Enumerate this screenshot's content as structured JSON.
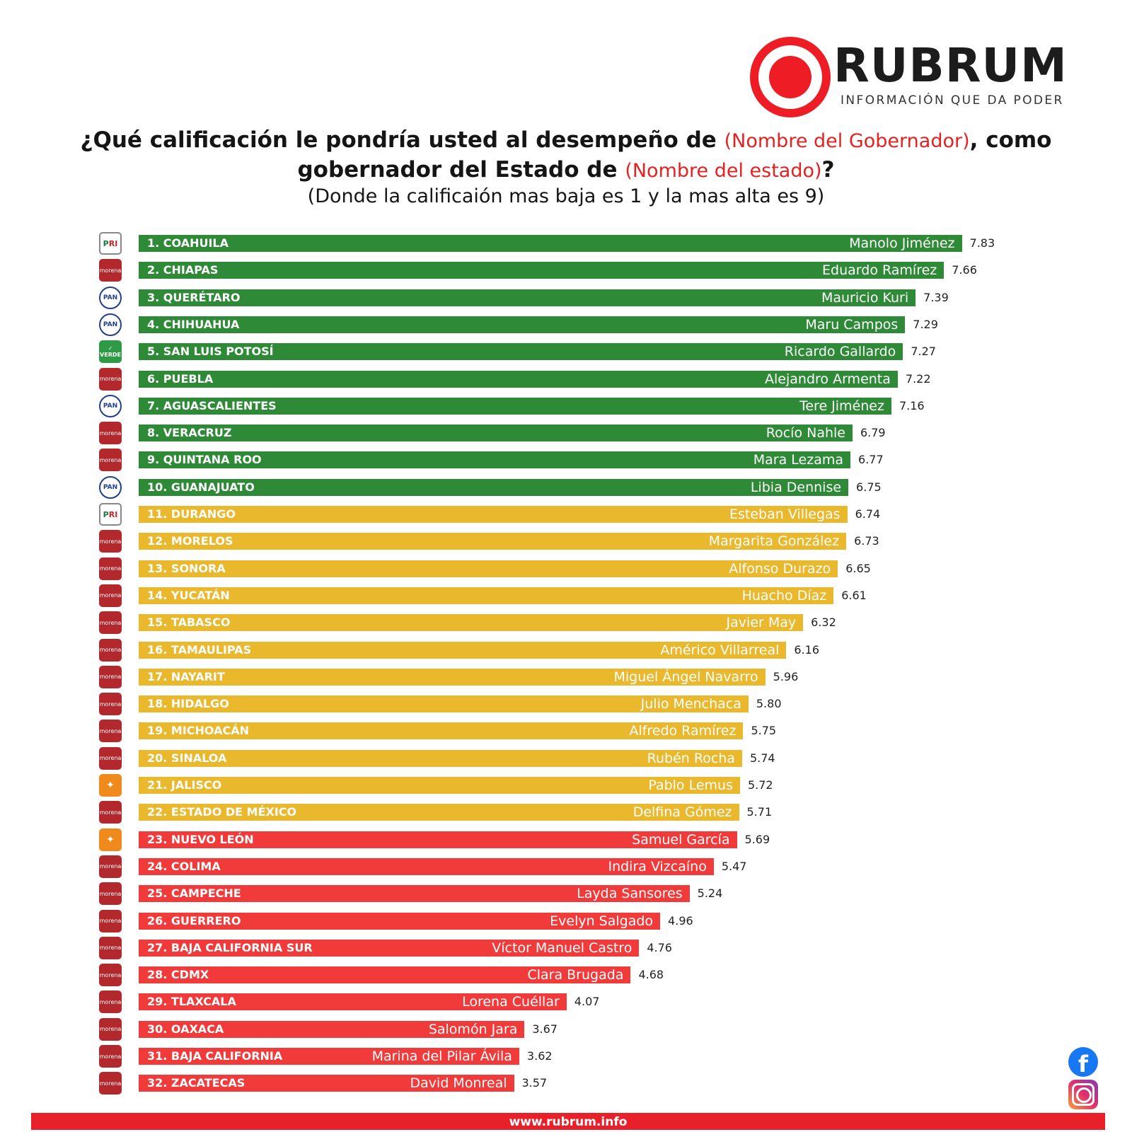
{
  "brand": {
    "name": "RUBRUM",
    "tagline": "INFORMACIÓN QUE DA PODER",
    "color": "#ee1c25"
  },
  "title": {
    "part1": "¿Qué calificación le pondría usted al desempeño de ",
    "highlight1": "(Nombre del Gobernador)",
    "part2": ", como gobernador del Estado de ",
    "highlight2": "(Nombre del estado)",
    "part3": "?",
    "subtitle": "(Donde la calificaión mas baja es 1 y la mas alta es 9)"
  },
  "colors": {
    "green": "#2f8a37",
    "yellow": "#e9b82d",
    "red": "#f13b3b"
  },
  "chart_data": {
    "type": "bar",
    "orientation": "horizontal",
    "xlim": [
      0,
      9
    ],
    "rows": [
      {
        "label": "1. COAHUILA",
        "governor": "Manolo Jiménez",
        "value": 7.83,
        "value_label": "7.83",
        "party": "PRI",
        "band": "green"
      },
      {
        "label": "2. CHIAPAS",
        "governor": "Eduardo Ramírez",
        "value": 7.66,
        "value_label": "7.66",
        "party": "morena",
        "band": "green"
      },
      {
        "label": "3. QUERÉTARO",
        "governor": "Mauricio Kuri",
        "value": 7.39,
        "value_label": "7.39",
        "party": "PAN",
        "band": "green"
      },
      {
        "label": "4. CHIHUAHUA",
        "governor": "Maru Campos",
        "value": 7.29,
        "value_label": "7.29",
        "party": "PAN",
        "band": "green"
      },
      {
        "label": "5. SAN LUIS POTOSÍ",
        "governor": "Ricardo Gallardo",
        "value": 7.27,
        "value_label": "7.27",
        "party": "VERDE",
        "band": "green"
      },
      {
        "label": "6. PUEBLA",
        "governor": "Alejandro Armenta",
        "value": 7.22,
        "value_label": "7.22",
        "party": "morena",
        "band": "green"
      },
      {
        "label": "7. AGUASCALIENTES",
        "governor": "Tere Jiménez",
        "value": 7.16,
        "value_label": "7.16",
        "party": "PAN",
        "band": "green"
      },
      {
        "label": "8. VERACRUZ",
        "governor": "Rocío Nahle",
        "value": 6.79,
        "value_label": "6.79",
        "party": "morena",
        "band": "green"
      },
      {
        "label": "9. QUINTANA ROO",
        "governor": "Mara Lezama",
        "value": 6.77,
        "value_label": "6.77",
        "party": "morena",
        "band": "green"
      },
      {
        "label": "10. GUANAJUATO",
        "governor": "Libia Dennise",
        "value": 6.75,
        "value_label": "6.75",
        "party": "PAN",
        "band": "green"
      },
      {
        "label": "11. DURANGO",
        "governor": "Esteban Villegas",
        "value": 6.74,
        "value_label": "6.74",
        "party": "PRI",
        "band": "yellow"
      },
      {
        "label": "12. MORELOS",
        "governor": "Margarita González",
        "value": 6.73,
        "value_label": "6.73",
        "party": "morena",
        "band": "yellow"
      },
      {
        "label": "13. SONORA",
        "governor": "Alfonso Durazo",
        "value": 6.65,
        "value_label": "6.65",
        "party": "morena",
        "band": "yellow"
      },
      {
        "label": "14. YUCATÁN",
        "governor": "Huacho Díaz",
        "value": 6.61,
        "value_label": "6.61",
        "party": "morena",
        "band": "yellow"
      },
      {
        "label": "15. TABASCO",
        "governor": "Javier May",
        "value": 6.32,
        "value_label": "6.32",
        "party": "morena",
        "band": "yellow"
      },
      {
        "label": "16. TAMAULIPAS",
        "governor": "Américo Villarreal",
        "value": 6.16,
        "value_label": "6.16",
        "party": "morena",
        "band": "yellow"
      },
      {
        "label": "17. NAYARIT",
        "governor": "Miguel Ángel Navarro",
        "value": 5.96,
        "value_label": "5.96",
        "party": "morena",
        "band": "yellow"
      },
      {
        "label": "18. HIDALGO",
        "governor": "Julio Menchaca",
        "value": 5.8,
        "value_label": "5.80",
        "party": "morena",
        "band": "yellow"
      },
      {
        "label": "19. MICHOACÁN",
        "governor": "Alfredo Ramírez",
        "value": 5.75,
        "value_label": "5.75",
        "party": "morena",
        "band": "yellow"
      },
      {
        "label": "20. SINALOA",
        "governor": "Rubén Rocha",
        "value": 5.74,
        "value_label": "5.74",
        "party": "morena",
        "band": "yellow"
      },
      {
        "label": "21. JALISCO",
        "governor": "Pablo Lemus",
        "value": 5.72,
        "value_label": "5.72",
        "party": "MC",
        "band": "yellow"
      },
      {
        "label": "22. ESTADO DE MÉXICO",
        "governor": "Delfina Gómez",
        "value": 5.71,
        "value_label": "5.71",
        "party": "morena",
        "band": "yellow"
      },
      {
        "label": "23. NUEVO LEÓN",
        "governor": "Samuel García",
        "value": 5.69,
        "value_label": "5.69",
        "party": "MC",
        "band": "red"
      },
      {
        "label": "24. COLIMA",
        "governor": "Indira Vizcaíno",
        "value": 5.47,
        "value_label": "5.47",
        "party": "morena",
        "band": "red"
      },
      {
        "label": "25. CAMPECHE",
        "governor": "Layda Sansores",
        "value": 5.24,
        "value_label": "5.24",
        "party": "morena",
        "band": "red"
      },
      {
        "label": "26. GUERRERO",
        "governor": "Evelyn Salgado",
        "value": 4.96,
        "value_label": "4.96",
        "party": "morena",
        "band": "red"
      },
      {
        "label": "27. BAJA CALIFORNIA SUR",
        "governor": "Víctor Manuel Castro",
        "value": 4.76,
        "value_label": "4.76",
        "party": "morena",
        "band": "red"
      },
      {
        "label": "28. CDMX",
        "governor": "Clara Brugada",
        "value": 4.68,
        "value_label": "4.68",
        "party": "morena",
        "band": "red"
      },
      {
        "label": "29. TLAXCALA",
        "governor": "Lorena Cuéllar",
        "value": 4.07,
        "value_label": "4.07",
        "party": "morena",
        "band": "red"
      },
      {
        "label": "30. OAXACA",
        "governor": "Salomón Jara",
        "value": 3.67,
        "value_label": "3.67",
        "party": "morena",
        "band": "red"
      },
      {
        "label": "31. BAJA CALIFORNIA",
        "governor": "Marina del Pilar Ávila",
        "value": 3.62,
        "value_label": "3.62",
        "party": "morena",
        "band": "red"
      },
      {
        "label": "32. ZACATECAS",
        "governor": "David Monreal",
        "value": 3.57,
        "value_label": "3.57",
        "party": "morena",
        "band": "red"
      }
    ]
  },
  "footer": {
    "url": "www.rubrum.info"
  },
  "social": {
    "facebook_icon": "facebook-icon",
    "instagram_icon": "instagram-icon"
  }
}
